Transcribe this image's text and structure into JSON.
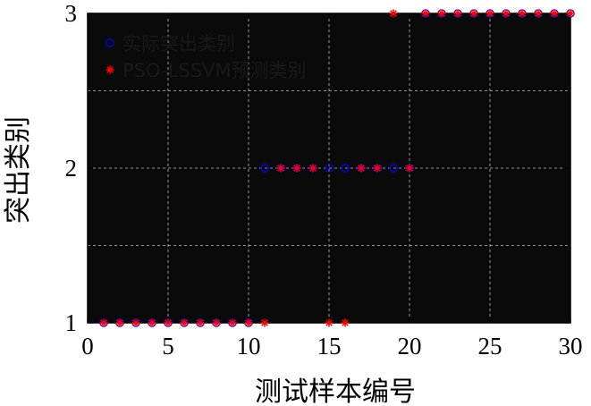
{
  "chart_data": {
    "type": "scatter",
    "xlabel": "测试样本编号",
    "ylabel": "突出类别",
    "xlim": [
      0,
      30
    ],
    "ylim": [
      1,
      3
    ],
    "xticks": [
      0,
      5,
      10,
      15,
      20,
      25,
      30
    ],
    "yticks": [
      1,
      2,
      3
    ],
    "grid": true,
    "background": "#0a0a0a",
    "grid_color": "#bfbfbf",
    "legend_position": "top-left",
    "series": [
      {
        "name": "实际突出类别",
        "marker": "circle",
        "color": "#0000ff",
        "x": [
          1,
          2,
          3,
          4,
          5,
          6,
          7,
          8,
          9,
          10,
          11,
          12,
          13,
          14,
          15,
          16,
          17,
          18,
          19,
          20,
          21,
          22,
          23,
          24,
          25,
          26,
          27,
          28,
          29,
          30
        ],
        "y": [
          1,
          1,
          1,
          1,
          1,
          1,
          1,
          1,
          1,
          1,
          2,
          2,
          2,
          2,
          2,
          2,
          2,
          2,
          2,
          2,
          3,
          3,
          3,
          3,
          3,
          3,
          3,
          3,
          3,
          3
        ]
      },
      {
        "name": "PSO-LSSVM预测类别",
        "marker": "asterisk",
        "color": "#ff0000",
        "x": [
          1,
          2,
          3,
          4,
          5,
          6,
          7,
          8,
          9,
          10,
          11,
          12,
          13,
          14,
          15,
          16,
          17,
          18,
          19,
          20,
          21,
          22,
          23,
          24,
          25,
          26,
          27,
          28,
          29,
          30
        ],
        "y": [
          1,
          1,
          1,
          1,
          1,
          1,
          1,
          1,
          1,
          1,
          1,
          2,
          2,
          2,
          1,
          1,
          2,
          2,
          3,
          2,
          3,
          3,
          3,
          3,
          3,
          3,
          3,
          3,
          3,
          3
        ]
      }
    ]
  }
}
